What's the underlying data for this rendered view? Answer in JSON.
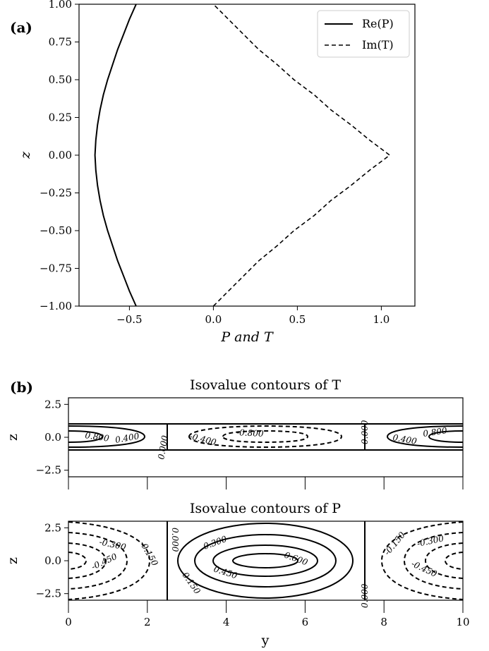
{
  "chart_data": [
    {
      "type": "line",
      "panel_tag": "(a)",
      "xlabel": "P and T",
      "ylabel": "z",
      "xlim": [
        -0.8,
        1.2
      ],
      "ylim": [
        -1.0,
        1.0
      ],
      "xticks": [
        -0.5,
        0.0,
        0.5,
        1.0
      ],
      "xtick_labels": [
        "−0.5",
        "0.0",
        "0.5",
        "1.0"
      ],
      "yticks": [
        -1.0,
        -0.75,
        -0.5,
        -0.25,
        0.0,
        0.25,
        0.5,
        0.75,
        1.0
      ],
      "ytick_labels": [
        "−1.00",
        "−0.75",
        "−0.50",
        "−0.25",
        "0.00",
        "0.25",
        "0.50",
        "0.75",
        "1.00"
      ],
      "legend_position": "top-right",
      "series": [
        {
          "name": "Re(P)",
          "style": "solid",
          "z": [
            -1.0,
            -0.9,
            -0.8,
            -0.7,
            -0.6,
            -0.5,
            -0.4,
            -0.3,
            -0.2,
            -0.1,
            0.0,
            0.1,
            0.2,
            0.3,
            0.4,
            0.5,
            0.6,
            0.7,
            0.8,
            0.9,
            1.0
          ],
          "values": [
            -0.46,
            -0.5,
            -0.535,
            -0.57,
            -0.6,
            -0.63,
            -0.655,
            -0.675,
            -0.69,
            -0.7,
            -0.705,
            -0.7,
            -0.69,
            -0.675,
            -0.655,
            -0.63,
            -0.6,
            -0.57,
            -0.535,
            -0.5,
            -0.46
          ]
        },
        {
          "name": "Im(T)",
          "style": "dashed",
          "z": [
            -1.0,
            -0.9,
            -0.8,
            -0.7,
            -0.6,
            -0.5,
            -0.4,
            -0.3,
            -0.2,
            -0.1,
            0.0,
            0.1,
            0.2,
            0.3,
            0.4,
            0.5,
            0.6,
            0.7,
            0.8,
            0.9,
            1.0
          ],
          "values": [
            0.0,
            0.09,
            0.18,
            0.27,
            0.38,
            0.48,
            0.6,
            0.7,
            0.82,
            0.93,
            1.05,
            0.93,
            0.82,
            0.7,
            0.6,
            0.48,
            0.38,
            0.27,
            0.18,
            0.09,
            0.0
          ]
        }
      ]
    },
    {
      "type": "contour",
      "panel_tag": "(b)",
      "title": "Isovalue contours of T",
      "ylabel": "z",
      "xlim": [
        0,
        10
      ],
      "ylim": [
        -3.0,
        3.0
      ],
      "yticks": [
        -2.5,
        0.0,
        2.5
      ],
      "ytick_labels": [
        "−2.5",
        "0.0",
        "2.5"
      ],
      "layer_bounds": [
        -1.0,
        1.0
      ],
      "levels": [
        -0.8,
        -0.4,
        0.0,
        0.4,
        0.8
      ],
      "contour_labels": [
        "0.800",
        "0.400",
        "0.000",
        "-0.400",
        "-0.800",
        "0.000",
        "0.400",
        "0.800"
      ]
    },
    {
      "type": "contour",
      "title": "Isovalue contours of P",
      "xlabel": "y",
      "ylabel": "z",
      "xlim": [
        0,
        10
      ],
      "ylim": [
        -3.0,
        3.0
      ],
      "xticks": [
        0,
        2,
        4,
        6,
        8,
        10
      ],
      "xtick_labels": [
        "0",
        "2",
        "4",
        "6",
        "8",
        "10"
      ],
      "yticks": [
        -2.5,
        0.0,
        2.5
      ],
      "ytick_labels": [
        "−2.5",
        "0.0",
        "2.5"
      ],
      "levels": [
        -0.45,
        -0.3,
        -0.15,
        0.0,
        0.15,
        0.3,
        0.45,
        0.6
      ],
      "contour_labels": [
        "-0.300",
        "-0.150",
        "-0.450",
        "0.000",
        "0.300",
        "0.600",
        "0.450",
        "0.150",
        "0.000",
        "-0.150",
        "-0.300",
        "-0.450"
      ]
    }
  ]
}
